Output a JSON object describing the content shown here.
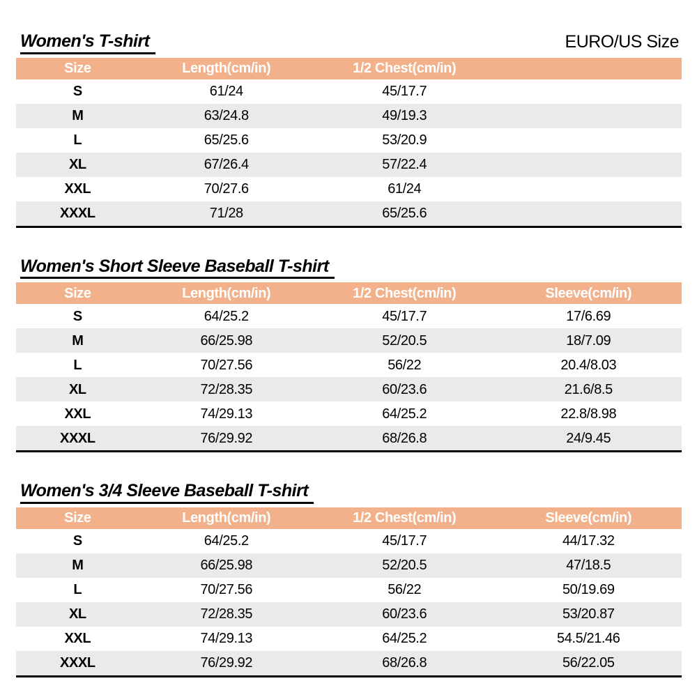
{
  "page": {
    "size_standard": "EURO/US Size"
  },
  "colors": {
    "header_bg": "#F2B18A",
    "stripe_bg": "#EAEAEA",
    "header_text": "#FFFFFF",
    "body_text": "#000000"
  },
  "tables": [
    {
      "title": "Women's T-shirt",
      "headers": [
        "Size",
        "Length(cm/in)",
        "1/2 Chest(cm/in)",
        ""
      ],
      "rows": [
        [
          "S",
          "61/24",
          "45/17.7",
          ""
        ],
        [
          "M",
          "63/24.8",
          "49/19.3",
          ""
        ],
        [
          "L",
          "65/25.6",
          "53/20.9",
          ""
        ],
        [
          "XL",
          "67/26.4",
          "57/22.4",
          ""
        ],
        [
          "XXL",
          "70/27.6",
          "61/24",
          ""
        ],
        [
          "XXXL",
          "71/28",
          "65/25.6",
          ""
        ]
      ]
    },
    {
      "title": "Women's Short Sleeve Baseball T-shirt",
      "headers": [
        "Size",
        "Length(cm/in)",
        "1/2 Chest(cm/in)",
        "Sleeve(cm/in)"
      ],
      "rows": [
        [
          "S",
          "64/25.2",
          "45/17.7",
          "17/6.69"
        ],
        [
          "M",
          "66/25.98",
          "52/20.5",
          "18/7.09"
        ],
        [
          "L",
          "70/27.56",
          "56/22",
          "20.4/8.03"
        ],
        [
          "XL",
          "72/28.35",
          "60/23.6",
          "21.6/8.5"
        ],
        [
          "XXL",
          "74/29.13",
          "64/25.2",
          "22.8/8.98"
        ],
        [
          "XXXL",
          "76/29.92",
          "68/26.8",
          "24/9.45"
        ]
      ]
    },
    {
      "title": "Women's 3/4 Sleeve Baseball T-shirt",
      "headers": [
        "Size",
        "Length(cm/in)",
        "1/2 Chest(cm/in)",
        "Sleeve(cm/in)"
      ],
      "rows": [
        [
          "S",
          "64/25.2",
          "45/17.7",
          "44/17.32"
        ],
        [
          "M",
          "66/25.98",
          "52/20.5",
          "47/18.5"
        ],
        [
          "L",
          "70/27.56",
          "56/22",
          "50/19.69"
        ],
        [
          "XL",
          "72/28.35",
          "60/23.6",
          "53/20.87"
        ],
        [
          "XXL",
          "74/29.13",
          "64/25.2",
          "54.5/21.46"
        ],
        [
          "XXXL",
          "76/29.92",
          "68/26.8",
          "56/22.05"
        ]
      ]
    }
  ]
}
